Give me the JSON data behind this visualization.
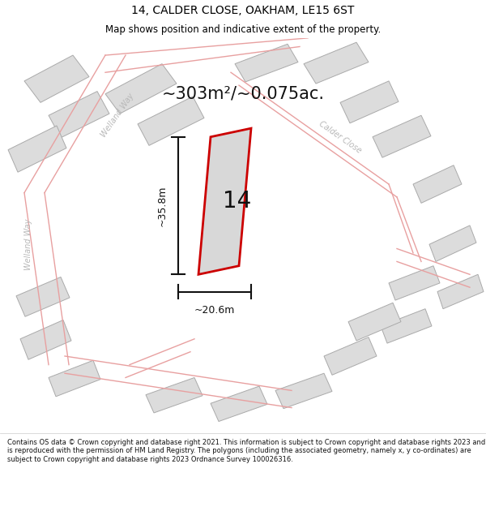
{
  "title": "14, CALDER CLOSE, OAKHAM, LE15 6ST",
  "subtitle": "Map shows position and indicative extent of the property.",
  "area_text": "~303m²/~0.075ac.",
  "label_14": "14",
  "dim_vertical": "~35.8m",
  "dim_horizontal": "~20.6m",
  "footer": "Contains OS data © Crown copyright and database right 2021. This information is subject to Crown copyright and database rights 2023 and is reproduced with the permission of HM Land Registry. The polygons (including the associated geometry, namely x, y co-ordinates) are subject to Crown copyright and database rights 2023 Ordnance Survey 100026316.",
  "title_fontsize": 10,
  "subtitle_fontsize": 8.5,
  "area_fontsize": 15,
  "label_fontsize": 20,
  "dim_fontsize": 9,
  "footer_fontsize": 6.0,
  "title_color": "#000000",
  "map_bg": "#ffffff",
  "building_fill": "#dcdcdc",
  "building_edge": "#aaaaaa",
  "road_color": "#e8a0a0",
  "dim_line_color": "#111111",
  "plot_color": "#cc0000",
  "street_label_color": "#b8b8b8",
  "street_label_welland_way_diag": "Welland Way",
  "street_label_welland_way_vert": "Welland Way",
  "street_label_calder_close": "Calder Close"
}
